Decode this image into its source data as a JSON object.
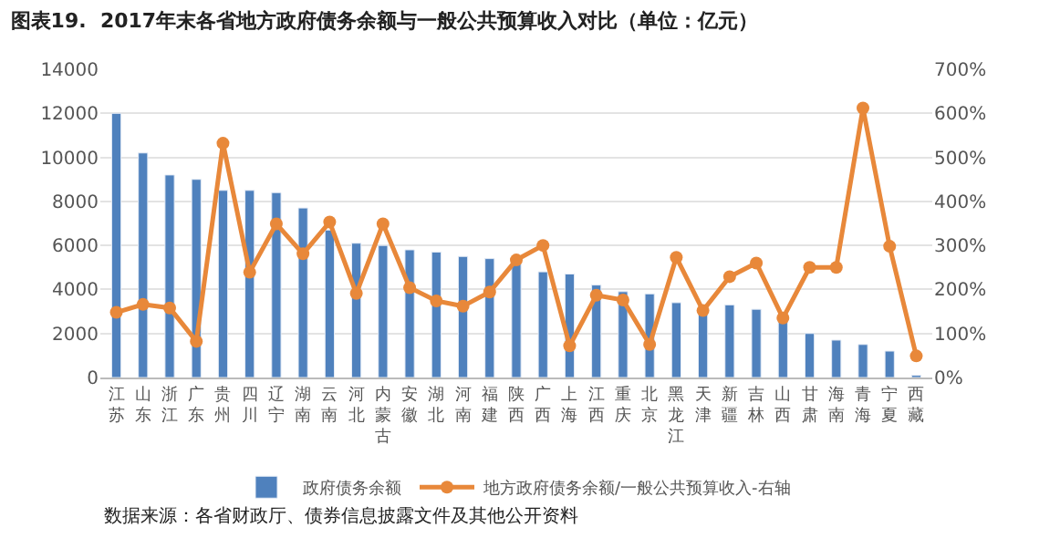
{
  "chart_data": {
    "type": "bar",
    "title": "图表19.  2017年末各省地方政府债务余额与一般公共预算收入对比（单位：亿元）",
    "annotations": [
      "数据来源：各省财政厅、债券信息披露文件及其他公开资料"
    ],
    "categories": [
      "江苏",
      "山东",
      "浙江",
      "广东",
      "贵州",
      "四川",
      "辽宁",
      "湖南",
      "云南",
      "河北",
      "内蒙古",
      "安徽",
      "湖北",
      "河南",
      "福建",
      "陕西",
      "广西",
      "上海",
      "江西",
      "重庆",
      "北京",
      "黑龙江",
      "天津",
      "新疆",
      "吉林",
      "山西",
      "甘肃",
      "海南",
      "青海",
      "宁夏",
      "西藏"
    ],
    "series": [
      {
        "name": "政府债务余额",
        "color": "#4f81bd",
        "values": [
          12000,
          10200,
          9200,
          9000,
          8500,
          8500,
          8400,
          7700,
          6700,
          6100,
          6000,
          5800,
          5700,
          5500,
          5400,
          5200,
          4800,
          4700,
          4200,
          3900,
          3800,
          3400,
          3000,
          3300,
          3100,
          2700,
          2000,
          1700,
          1500,
          1200,
          100
        ]
      },
      {
        "name": "地方政府债务余额/一般公共预算收入-右轴",
        "type": "line",
        "axis": "y2",
        "color": "#e8883a",
        "values": [
          148,
          166,
          158,
          82,
          532,
          239,
          349,
          281,
          353,
          191,
          349,
          204,
          174,
          162,
          194,
          267,
          300,
          72,
          187,
          176,
          75,
          273,
          152,
          229,
          260,
          135,
          250,
          250,
          612,
          298,
          49
        ]
      }
    ],
    "ylim": [
      0,
      14000
    ],
    "yticks": [
      0,
      2000,
      4000,
      6000,
      8000,
      10000,
      12000,
      14000
    ],
    "y2lim": [
      0,
      700
    ],
    "y2ticks": [
      {
        "value": 0,
        "label": "0%"
      },
      {
        "value": 100,
        "label": "100%"
      },
      {
        "value": 200,
        "label": "200%"
      },
      {
        "value": 300,
        "label": "300%"
      },
      {
        "value": 400,
        "label": "400%"
      },
      {
        "value": 500,
        "label": "500%"
      },
      {
        "value": 600,
        "label": "600%"
      },
      {
        "value": 700,
        "label": "700%"
      }
    ],
    "grid": "y",
    "legend": "bottom",
    "marker": "circle",
    "line_style": "solid"
  }
}
